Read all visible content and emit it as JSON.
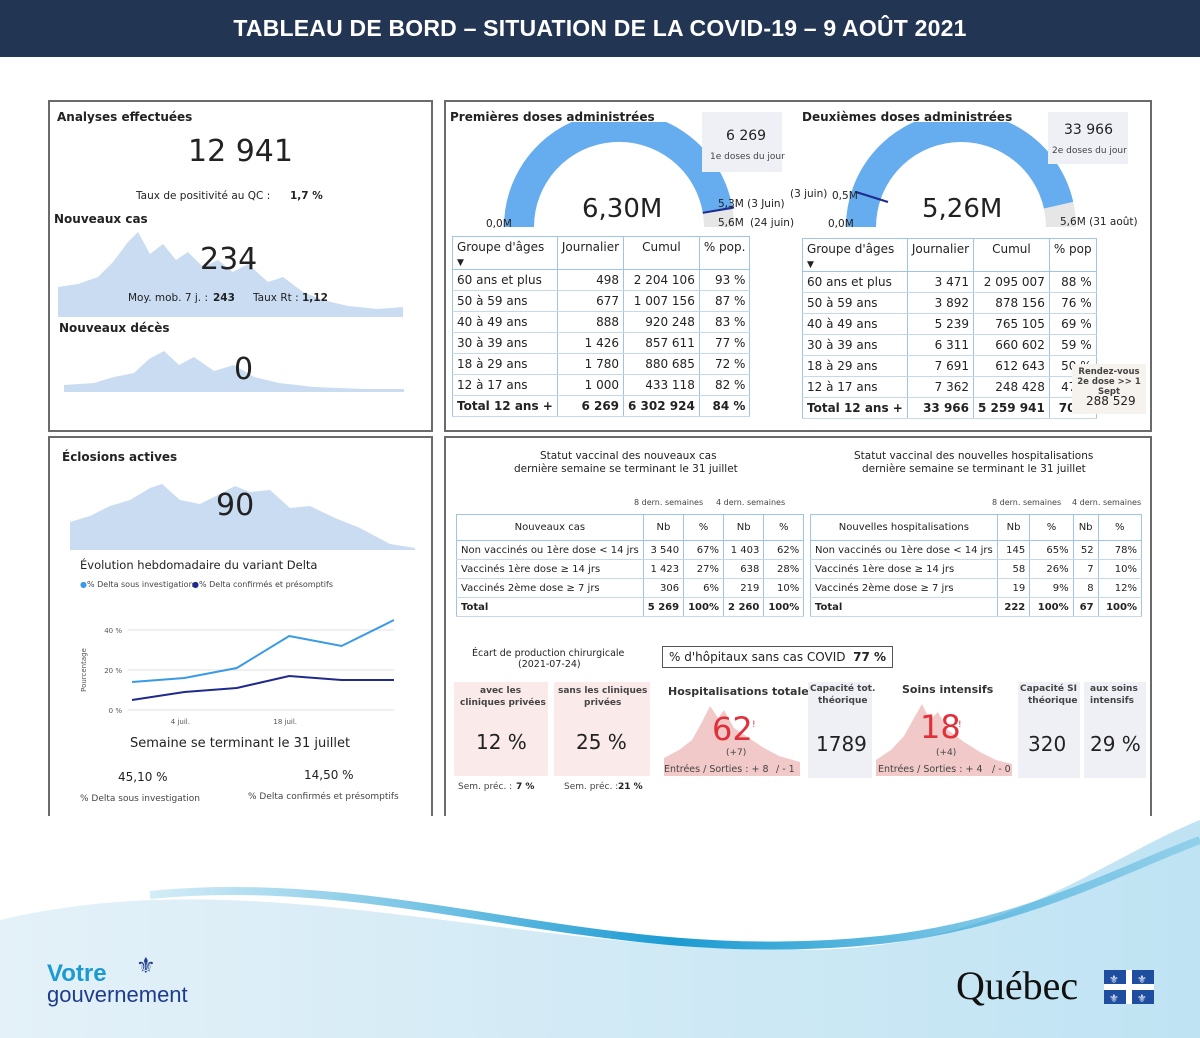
{
  "header": {
    "title": "TABLEAU DE BORD – SITUATION DE LA COVID-19 – 9 AOÛT 2021"
  },
  "analyses": {
    "title": "Analyses effectuées",
    "value": "12 941",
    "pos_label": "Taux de positivité au QC :",
    "pos_value": "1,7 %"
  },
  "cas": {
    "title": "Nouveaux cas",
    "value": "234",
    "moy_label": "Moy. mob. 7 j. :",
    "moy_value": "243",
    "rt_label": "Taux Rt :",
    "rt_value": "1,12"
  },
  "deces": {
    "title": "Nouveaux décès",
    "value": "0"
  },
  "dose1": {
    "title": "Premières doses administrées",
    "center": "6,30M",
    "min": "0,0M",
    "mark1": "5,3M (3 Juin)",
    "mark2": "5,6M",
    "mark2b": "(24 juin)",
    "day_value": "6 269",
    "day_label": "1e doses du jour",
    "fill": 0.95,
    "cols": [
      "Groupe d'âges",
      "Journalier",
      "Cumul",
      "% pop."
    ],
    "rows": [
      [
        "60 ans et plus",
        "498",
        "2 204 106",
        "93 %"
      ],
      [
        "50 à 59 ans",
        "677",
        "1 007 156",
        "87 %"
      ],
      [
        "40 à 49 ans",
        "888",
        "920 248",
        "83 %"
      ],
      [
        "30 à 39 ans",
        "1 426",
        "857 611",
        "77 %"
      ],
      [
        "18 à 29 ans",
        "1 780",
        "880 685",
        "72 %"
      ],
      [
        "12 à 17 ans",
        "1 000",
        "433 118",
        "82 %"
      ]
    ],
    "total": [
      "Total 12 ans +",
      "6 269",
      "6 302 924",
      "84 %"
    ]
  },
  "dose2": {
    "title": "Deuxièmes doses administrées",
    "center": "5,26M",
    "min": "0,0M",
    "mark1": "(3 juin)",
    "mark1b": "0,5M",
    "mark2": "5,6M (31 août)",
    "day_value": "33 966",
    "day_label": "2e doses du jour",
    "fill": 0.93,
    "cols": [
      "Groupe d'âges",
      "Journalier",
      "Cumul",
      "% pop"
    ],
    "rows": [
      [
        "60 ans et plus",
        "3 471",
        "2 095 007",
        "88 %"
      ],
      [
        "50 à 59 ans",
        "3 892",
        "878 156",
        "76 %"
      ],
      [
        "40 à 49 ans",
        "5 239",
        "765 105",
        "69 %"
      ],
      [
        "30 à 39 ans",
        "6 311",
        "660 602",
        "59 %"
      ],
      [
        "18 à 29 ans",
        "7 691",
        "612 643",
        "50 %"
      ],
      [
        "12 à 17 ans",
        "7 362",
        "248 428",
        "47 %"
      ]
    ],
    "total": [
      "Total 12 ans +",
      "33 966",
      "5 259 941",
      "70 %"
    ],
    "rdv_label": "Rendez-vous 2e dose >> 1 Sept",
    "rdv_value": "288 529"
  },
  "eclosions": {
    "title": "Éclosions actives",
    "value": "90"
  },
  "delta": {
    "title": "Évolution hebdomadaire du variant Delta",
    "legend1": "% Delta sous investigation",
    "legend2": "% Delta confirmés et présomptifs",
    "ylabel": "Pourcentage",
    "week": "Semaine se terminant le 31 juillet",
    "v1": "45,10 %",
    "v1_label": "% Delta sous investigation",
    "v2": "14,50 %",
    "v2_label": "% Delta confirmés et présomptifs",
    "color1": "#3a9ae6",
    "color2": "#1f2a8c"
  },
  "chart_data": {
    "type": "line",
    "title": "Évolution hebdomadaire du variant Delta",
    "ylabel": "Pourcentage",
    "x_ticks": [
      "4 juil.",
      "18 juil."
    ],
    "y_ticks": [
      "0 %",
      "20 %",
      "40 %"
    ],
    "ylim": [
      0,
      50
    ],
    "series": [
      {
        "name": "% Delta sous investigation",
        "values": [
          14,
          16,
          21,
          37,
          32,
          45
        ]
      },
      {
        "name": "% Delta confirmés et présomptifs",
        "values": [
          5,
          9,
          11,
          17,
          15,
          15
        ]
      }
    ]
  },
  "statut_cas": {
    "title1": "Statut vaccinal des nouveaux cas",
    "title2": "dernière semaine se terminant le 31 juillet",
    "span1": "8 dern. semaines",
    "span2": "4 dern. semaines",
    "cols": [
      "Nouveaux cas",
      "Nb",
      "%",
      "Nb",
      "%"
    ],
    "rows": [
      [
        "Non vaccinés ou 1ère dose < 14 jrs",
        "3 540",
        "67%",
        "1 403",
        "62%"
      ],
      [
        "Vaccinés 1ère dose ≥ 14 jrs",
        "1 423",
        "27%",
        "638",
        "28%"
      ],
      [
        "Vaccinés 2ème dose ≥ 7 jrs",
        "306",
        "6%",
        "219",
        "10%"
      ]
    ],
    "total": [
      "Total",
      "5 269",
      "100%",
      "2 260",
      "100%"
    ]
  },
  "statut_hosp": {
    "title1": "Statut vaccinal des nouvelles hospitalisations",
    "title2": "dernière semaine se terminant le 31 juillet",
    "span1": "8 dern. semaines",
    "span2": "4 dern. semaines",
    "cols": [
      "Nouvelles hospitalisations",
      "Nb",
      "%",
      "Nb",
      "%"
    ],
    "rows": [
      [
        "Non vaccinés ou 1ère dose < 14 jrs",
        "145",
        "65%",
        "52",
        "78%"
      ],
      [
        "Vaccinés 1ère dose ≥ 14 jrs",
        "58",
        "26%",
        "7",
        "10%"
      ],
      [
        "Vaccinés 2ème dose ≥ 7 jrs",
        "19",
        "9%",
        "8",
        "12%"
      ]
    ],
    "total": [
      "Total",
      "222",
      "100%",
      "67",
      "100%"
    ]
  },
  "chir": {
    "title1": "Écart de production chirurgicale",
    "title2": "(2021-07-24)",
    "a_label1": "avec les",
    "a_label2": "cliniques privées",
    "a_value": "12 %",
    "b_label1": "sans les cliniques",
    "b_label2": "privées",
    "b_value": "25 %",
    "prev_label": "Sem. préc. :",
    "a_prev": "7 %",
    "b_prev": "21 %"
  },
  "hopitaux": {
    "label": "% d'hôpitaux sans cas COVID",
    "value": "77 %"
  },
  "hosp": {
    "title": "Hospitalisations totales",
    "value": "62",
    "delta": "(+7)",
    "flow": "Entrées / Sorties : + 8",
    "flow2": "/ - 1",
    "cap_label1": "Capacité tot.",
    "cap_label2": "théorique",
    "cap_value": "1789"
  },
  "si": {
    "title": "Soins intensifs",
    "value": "18",
    "delta": "(+4)",
    "flow": "Entrées / Sorties : + 4",
    "flow2": "/ - 0",
    "cap_label1": "Capacité SI",
    "cap_label2": "théorique",
    "cap_value": "320",
    "aux_label1": "aux soins",
    "aux_label2": "intensifs",
    "aux_value": "29 %"
  },
  "footer": {
    "votre": "Votre",
    "gouv": "gouvernement",
    "quebec": "Québec"
  }
}
